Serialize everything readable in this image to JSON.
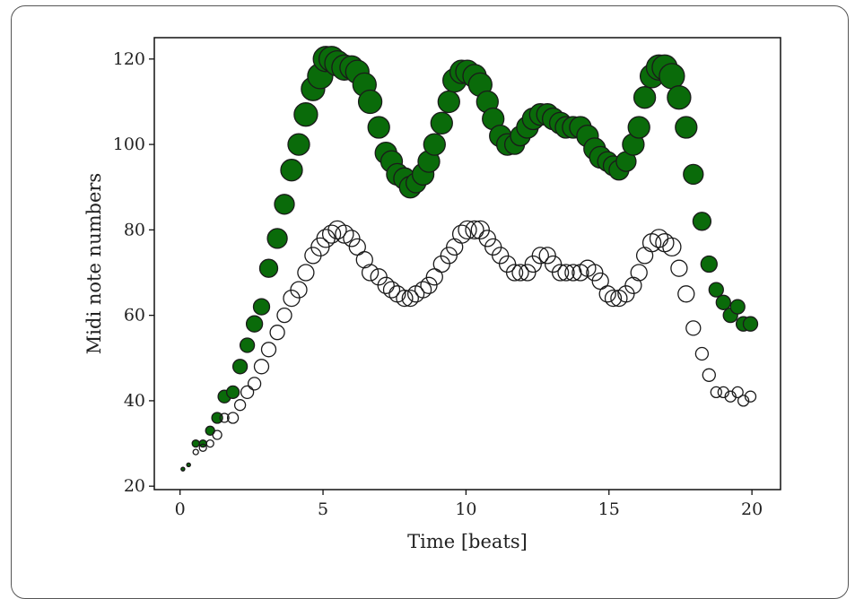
{
  "chart_data": {
    "type": "scatter",
    "title": "",
    "xlabel": "Time [beats]",
    "ylabel": "Midi note numbers",
    "xlim": [
      -0.9,
      21.0
    ],
    "ylim": [
      19.2,
      125.0
    ],
    "xticks": [
      0,
      5,
      10,
      15,
      20
    ],
    "yticks": [
      20,
      40,
      60,
      80,
      100,
      120
    ],
    "grid": false,
    "legend": "none",
    "series": [
      {
        "color": "#0a6b0a",
        "edge_color": "#1a1a1a",
        "filled": true,
        "x": [
          0.1,
          0.3,
          0.55,
          0.8,
          1.05,
          1.3,
          1.55,
          1.85,
          2.1,
          2.35,
          2.6,
          2.85,
          3.1,
          3.4,
          3.65,
          3.9,
          4.15,
          4.4,
          4.65,
          4.9,
          5.1,
          5.3,
          5.5,
          5.75,
          6.0,
          6.2,
          6.45,
          6.65,
          6.95,
          7.2,
          7.4,
          7.6,
          7.85,
          8.05,
          8.25,
          8.5,
          8.7,
          8.9,
          9.15,
          9.4,
          9.6,
          9.85,
          10.05,
          10.3,
          10.5,
          10.75,
          10.95,
          11.2,
          11.45,
          11.7,
          11.9,
          12.15,
          12.35,
          12.6,
          12.85,
          13.05,
          13.3,
          13.5,
          13.75,
          14.0,
          14.25,
          14.5,
          14.7,
          14.95,
          15.15,
          15.35,
          15.6,
          15.85,
          16.05,
          16.25,
          16.5,
          16.75,
          16.95,
          17.2,
          17.45,
          17.7,
          17.95,
          18.25,
          18.5,
          18.75,
          19.0,
          19.25,
          19.5,
          19.7,
          19.95
        ],
        "y": [
          24,
          25,
          30,
          30,
          33,
          36,
          41,
          42,
          48,
          53,
          58,
          62,
          71,
          78,
          86,
          94,
          100,
          107,
          113,
          116,
          120,
          120,
          119,
          118,
          118,
          117,
          114,
          110,
          104,
          98,
          96,
          93,
          92,
          90,
          91,
          93,
          96,
          100,
          105,
          110,
          115,
          117,
          117,
          116,
          114,
          110,
          106,
          102,
          100,
          100,
          102,
          104,
          106,
          107,
          107,
          106,
          105,
          104,
          104,
          104,
          102,
          99,
          97,
          96,
          95,
          94,
          96,
          100,
          104,
          111,
          116,
          118,
          118,
          116,
          111,
          104,
          93,
          82,
          72,
          66,
          63,
          60,
          62,
          58,
          58
        ],
        "size": [
          2,
          2,
          4,
          4,
          5,
          6,
          7,
          7,
          8,
          8,
          9,
          9,
          10,
          11,
          11,
          12,
          12,
          13,
          13,
          14,
          14,
          14,
          14,
          14,
          13,
          13,
          13,
          13,
          12,
          12,
          12,
          12,
          12,
          12,
          11,
          12,
          12,
          12,
          12,
          12,
          13,
          13,
          13,
          13,
          13,
          12,
          12,
          12,
          12,
          11,
          11,
          12,
          12,
          12,
          12,
          12,
          12,
          12,
          12,
          12,
          12,
          12,
          12,
          11,
          11,
          11,
          11,
          12,
          12,
          12,
          13,
          14,
          14,
          14,
          13,
          12,
          11,
          10,
          9,
          8,
          8,
          8,
          8,
          8,
          8
        ]
      },
      {
        "color": "#ffffff",
        "edge_color": "#1a1a1a",
        "filled": false,
        "x": [
          0.1,
          0.3,
          0.55,
          0.8,
          1.05,
          1.3,
          1.55,
          1.85,
          2.1,
          2.35,
          2.6,
          2.85,
          3.1,
          3.4,
          3.65,
          3.9,
          4.15,
          4.4,
          4.65,
          4.9,
          5.1,
          5.3,
          5.5,
          5.75,
          6.0,
          6.2,
          6.45,
          6.65,
          6.95,
          7.2,
          7.4,
          7.6,
          7.85,
          8.05,
          8.25,
          8.5,
          8.7,
          8.9,
          9.15,
          9.4,
          9.6,
          9.85,
          10.05,
          10.3,
          10.5,
          10.75,
          10.95,
          11.2,
          11.45,
          11.7,
          11.9,
          12.15,
          12.35,
          12.6,
          12.85,
          13.05,
          13.3,
          13.5,
          13.75,
          14.0,
          14.25,
          14.5,
          14.7,
          14.95,
          15.15,
          15.35,
          15.6,
          15.85,
          16.05,
          16.25,
          16.5,
          16.75,
          16.95,
          17.2,
          17.45,
          17.7,
          17.95,
          18.25,
          18.5,
          18.75,
          19.0,
          19.25,
          19.5,
          19.7,
          19.95
        ],
        "y": [
          24,
          25,
          28,
          29,
          30,
          32,
          36,
          36,
          39,
          42,
          44,
          48,
          52,
          56,
          60,
          64,
          66,
          70,
          74,
          76,
          78,
          79,
          80,
          79,
          78,
          76,
          73,
          70,
          69,
          67,
          66,
          65,
          64,
          64,
          65,
          66,
          67,
          69,
          72,
          74,
          76,
          79,
          80,
          80,
          80,
          78,
          76,
          74,
          72,
          70,
          70,
          70,
          72,
          74,
          74,
          72,
          70,
          70,
          70,
          70,
          71,
          70,
          68,
          65,
          64,
          64,
          65,
          67,
          70,
          74,
          77,
          78,
          77,
          76,
          71,
          65,
          57,
          51,
          46,
          42,
          42,
          41,
          42,
          40,
          41
        ],
        "size": [
          2,
          2,
          3,
          4,
          4,
          5,
          5,
          6,
          6,
          7,
          7,
          8,
          8,
          8,
          8,
          9,
          9,
          9,
          9,
          10,
          10,
          10,
          10,
          10,
          9,
          9,
          9,
          9,
          9,
          9,
          9,
          9,
          9,
          9,
          9,
          9,
          9,
          9,
          9,
          9,
          9,
          10,
          10,
          10,
          10,
          9,
          9,
          9,
          9,
          9,
          9,
          9,
          9,
          9,
          9,
          9,
          9,
          9,
          9,
          9,
          9,
          9,
          9,
          9,
          9,
          9,
          9,
          9,
          9,
          9,
          10,
          10,
          10,
          10,
          9,
          9,
          8,
          7,
          7,
          6,
          6,
          6,
          6,
          6,
          6
        ]
      }
    ]
  }
}
